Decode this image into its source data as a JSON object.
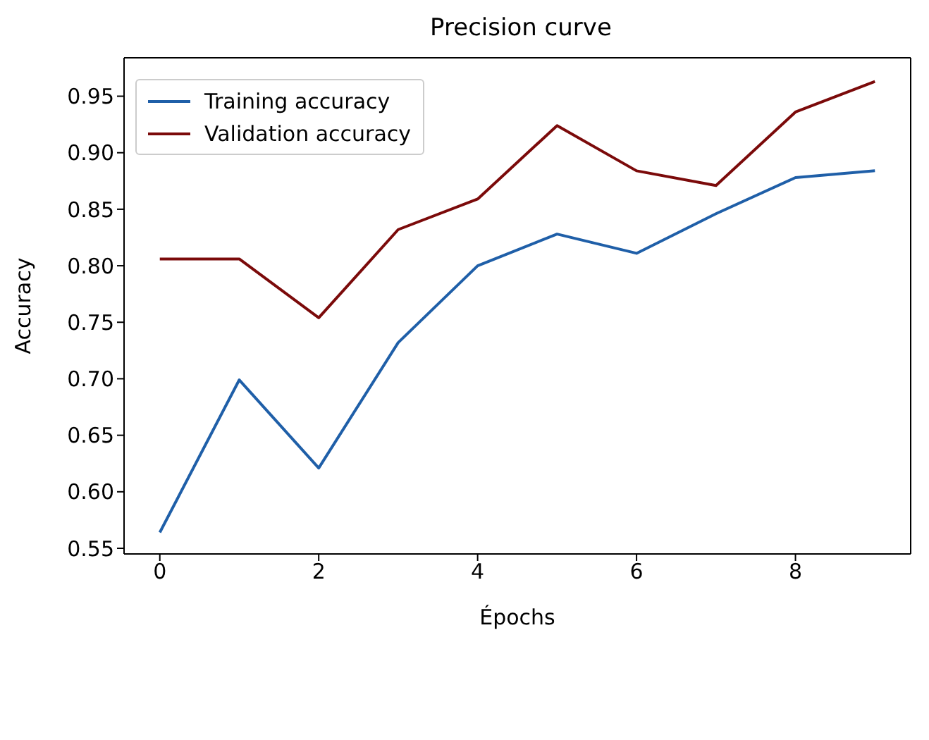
{
  "chart_data": {
    "type": "line",
    "title": "Precision curve",
    "xlabel": "Épochs",
    "ylabel": "Accuracy",
    "x": [
      0,
      1,
      2,
      3,
      4,
      5,
      6,
      7,
      8,
      9
    ],
    "series": [
      {
        "name": "Training accuracy",
        "color": "#1f5fa8",
        "values": [
          0.564,
          0.699,
          0.621,
          0.732,
          0.8,
          0.828,
          0.811,
          0.846,
          0.878,
          0.884
        ]
      },
      {
        "name": "Validation accuracy",
        "color": "#7b0a0a",
        "values": [
          0.806,
          0.806,
          0.754,
          0.832,
          0.859,
          0.924,
          0.884,
          0.871,
          0.936,
          0.963
        ]
      }
    ],
    "xlim": [
      -0.45,
      9.45
    ],
    "xticks": [
      0,
      2,
      4,
      6,
      8
    ],
    "ylim": [
      0.545,
      0.984
    ],
    "yticks": [
      0.55,
      {
        "value": 0.6,
        "label": "0.60"
      },
      0.65,
      {
        "value": 0.7,
        "label": "0.70"
      },
      0.75,
      {
        "value": 0.8,
        "label": "0.80"
      },
      0.85,
      {
        "value": 0.9,
        "label": "0.90"
      },
      0.95
    ],
    "grid": false,
    "legend": "top left",
    "marker": "none",
    "line_style": "solid"
  }
}
